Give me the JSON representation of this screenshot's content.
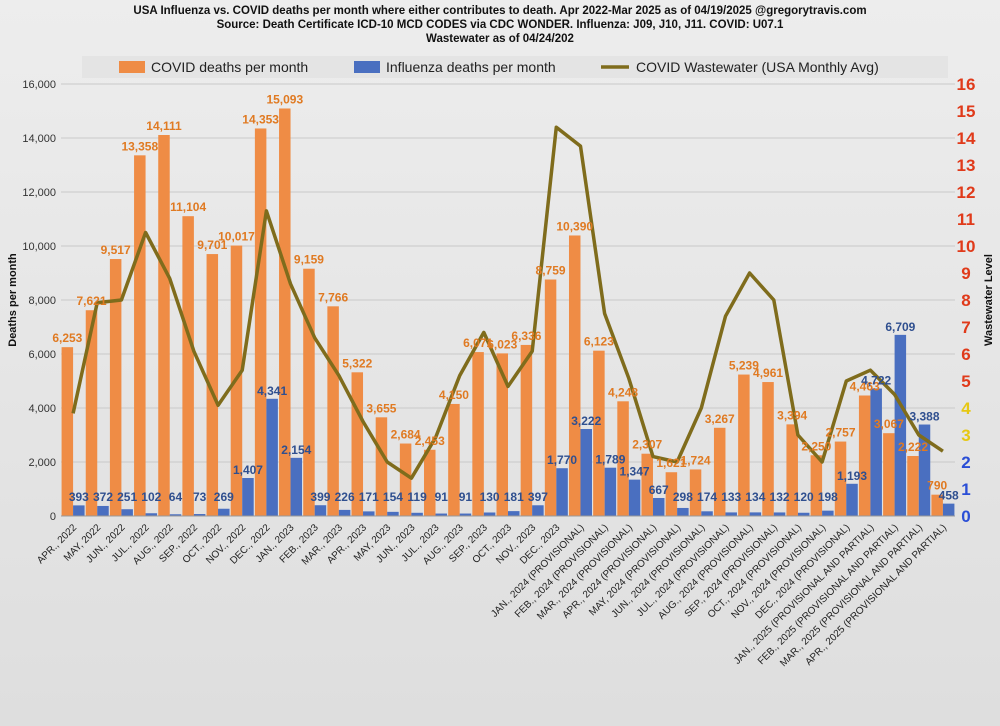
{
  "titles": {
    "line1": "USA Influenza vs. COVID deaths per month where either contributes to death.  Apr 2022-Mar 2025 as of 04/19/2025 @gregorytravis.com",
    "line2": "Source: Death Certificate ICD-10 MCD CODES via CDC WONDER.  Influenza: J09, J10, J11.  COVID: U07.1",
    "line3": "Wastewater as of 04/24/202"
  },
  "colors": {
    "covid": "#ef8c45",
    "influenza": "#4a6fc0",
    "wastewater": "#7f6c1c",
    "covid_label": "#e07a22",
    "influenza_label": "#2f4f8f"
  },
  "chart_data": {
    "type": "bar",
    "ylabel": "Deaths per month",
    "y2label": "Wastewater Level",
    "ylim": [
      0,
      16000
    ],
    "y2lim": [
      0,
      16
    ],
    "yticks": [
      "0",
      "2,000",
      "4,000",
      "6,000",
      "8,000",
      "10,000",
      "12,000",
      "14,000",
      "16,000"
    ],
    "y2ticks": [
      "0",
      "1",
      "2",
      "3",
      "4",
      "5",
      "6",
      "7",
      "8",
      "9",
      "10",
      "11",
      "12",
      "13",
      "14",
      "15",
      "16"
    ],
    "y2tick_colors": [
      "#2a4ed6",
      "#2a4ed6",
      "#2a4ed6",
      "#e6c814",
      "#e6c814",
      "#e03a1a",
      "#e03a1a",
      "#e03a1a",
      "#e03a1a",
      "#e03a1a",
      "#e03a1a",
      "#e03a1a",
      "#e03a1a",
      "#e03a1a",
      "#e03a1a",
      "#e03a1a",
      "#e03a1a"
    ],
    "grid": true,
    "legend_position": "top",
    "categories": [
      "APR., 2022",
      "MAY, 2022",
      "JUN., 2022",
      "JUL., 2022",
      "AUG., 2022",
      "SEP., 2022",
      "OCT., 2022",
      "NOV., 2022",
      "DEC., 2022",
      "JAN., 2023",
      "FEB., 2023",
      "MAR., 2023",
      "APR., 2023",
      "MAY, 2023",
      "JUN., 2023",
      "JUL., 2023",
      "AUG., 2023",
      "SEP., 2023",
      "OCT., 2023",
      "NOV., 2023",
      "DEC., 2023",
      "JAN., 2024 (PROVISIONAL)",
      "FEB., 2024 (PROVISIONAL)",
      "MAR., 2024 (PROVISIONAL)",
      "APR., 2024 (PROVISIONAL)",
      "MAY, 2024 (PROVISIONAL)",
      "JUN., 2024 (PROVISIONAL)",
      "JUL., 2024 (PROVISIONAL)",
      "AUG., 2024 (PROVISIONAL)",
      "SEP., 2024 (PROVISIONAL)",
      "OCT., 2024 (PROVISIONAL)",
      "NOV., 2024 (PROVISIONAL)",
      "DEC., 2024 (PROVISIONAL)",
      "JAN., 2025 (PROVISIONAL AND PARTIAL)",
      "FEB., 2025 (PROVISIONAL AND PARTIAL)",
      "MAR., 2025 (PROVISIONAL AND PARTIAL)",
      "APR., 2025 (PROVISIONAL AND PARTIAL)"
    ],
    "series": [
      {
        "name": "COVID deaths per month",
        "values": [
          6253,
          7621,
          9517,
          13358,
          14111,
          11104,
          9701,
          10017,
          14353,
          15093,
          9159,
          7766,
          5322,
          3655,
          2684,
          2453,
          4150,
          6071,
          6023,
          6336,
          8759,
          10390,
          6123,
          4248,
          2307,
          1621,
          1724,
          3267,
          5239,
          4961,
          3394,
          2250,
          2757,
          4463,
          3067,
          2222,
          790
        ],
        "labels": [
          "6,253",
          "7,621",
          "9,517",
          "13,358",
          "14,111",
          "11,104",
          "9,701",
          "10,017",
          "14,353",
          "15,093",
          "9,159",
          "7,766",
          "5,322",
          "3,655",
          "2,684",
          "2,453",
          "4,150",
          "6,071",
          "6,023",
          "6,336",
          "8,759",
          "10,390",
          "6,123",
          "4,248",
          "2,307",
          "1,621",
          "1,724",
          "3,267",
          "5,239",
          "4,961",
          "3,394",
          "2,250",
          "2,757",
          "4,463",
          "3,067",
          "2,222",
          "790"
        ]
      },
      {
        "name": "Influenza deaths per month",
        "values": [
          393,
          372,
          251,
          102,
          64,
          73,
          269,
          1407,
          4341,
          2154,
          399,
          226,
          171,
          154,
          119,
          91,
          91,
          130,
          181,
          397,
          1770,
          3222,
          1789,
          1347,
          667,
          298,
          174,
          133,
          134,
          132,
          120,
          198,
          1193,
          4722,
          6709,
          3388,
          458
        ],
        "labels": [
          "393",
          "372",
          "251",
          "102",
          "64",
          "73",
          "269",
          "1,407",
          "4,341",
          "2,154",
          "399",
          "226",
          "171",
          "154",
          "119",
          "91",
          "91",
          "130",
          "181",
          "397",
          "1,770",
          "3,222",
          "1,789",
          "1,347",
          "667",
          "298",
          "174",
          "133",
          "134",
          "132",
          "120",
          "198",
          "1,193",
          "4,722",
          "6,709",
          "3,388",
          "458"
        ]
      },
      {
        "name": "COVID Wastewater (USA Monthly Avg)",
        "type": "line",
        "axis": "secondary",
        "values": [
          3.8,
          7.9,
          8.0,
          10.5,
          8.8,
          6.1,
          4.1,
          5.4,
          11.3,
          8.6,
          6.6,
          5.2,
          3.5,
          2.0,
          1.4,
          2.9,
          5.2,
          6.8,
          4.8,
          6.1,
          14.4,
          13.7,
          7.5,
          5.1,
          2.2,
          2.0,
          4.0,
          7.4,
          9.0,
          8.0,
          3.0,
          2.0,
          5.0,
          5.4,
          4.5,
          3.0,
          2.4
        ]
      }
    ]
  }
}
